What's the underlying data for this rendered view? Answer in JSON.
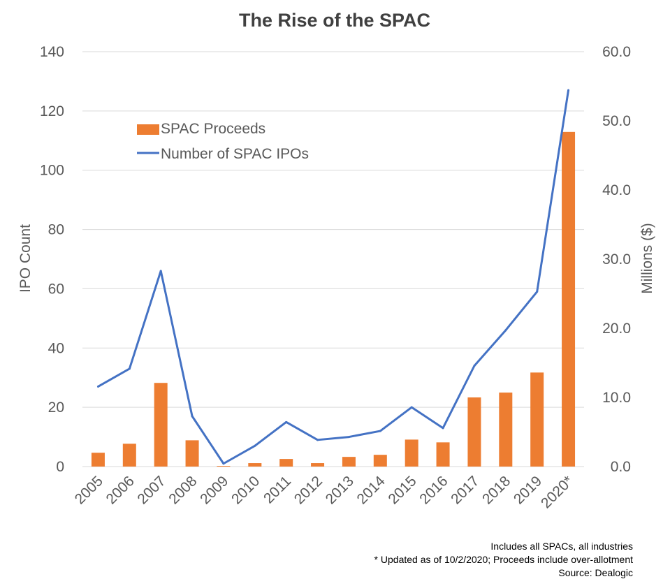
{
  "chart_data": {
    "type": "bar",
    "title": "The Rise of the SPAC",
    "categories": [
      "2005",
      "2006",
      "2007",
      "2008",
      "2009",
      "2010",
      "2011",
      "2012",
      "2013",
      "2014",
      "2015",
      "2016",
      "2017",
      "2018",
      "2019",
      "2020*"
    ],
    "y_left_label": "IPO Count",
    "y_right_label": "Millions ($)",
    "y_left_range": [
      0,
      140
    ],
    "y_left_ticks": [
      "0",
      "20",
      "40",
      "60",
      "80",
      "100",
      "120",
      "140"
    ],
    "y_right_range": [
      0,
      60
    ],
    "y_right_ticks": [
      "0.0",
      "10.0",
      "20.0",
      "30.0",
      "40.0",
      "50.0",
      "60.0"
    ],
    "grid": true,
    "legend_position": "top-left (inside plot)",
    "series": [
      {
        "name": "SPAC Proceeds",
        "type": "bar",
        "axis": "right",
        "color": "#ED7D31",
        "values": [
          2.0,
          3.3,
          12.1,
          3.8,
          0.1,
          0.5,
          1.1,
          0.5,
          1.4,
          1.7,
          3.9,
          3.5,
          10.0,
          10.7,
          13.6,
          48.4
        ]
      },
      {
        "name": "Number of SPAC IPOs",
        "type": "line",
        "axis": "left",
        "color": "#4472C4",
        "values": [
          27,
          33,
          66,
          17,
          1,
          7,
          15,
          9,
          10,
          12,
          20,
          13,
          34,
          46,
          59,
          127
        ]
      }
    ]
  },
  "notes": [
    "Includes all SPACs, all industries",
    "* Updated as of 10/2/2020; Proceeds include over-allotment",
    "Source: Dealogic"
  ]
}
